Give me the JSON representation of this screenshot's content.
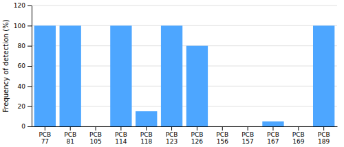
{
  "chart_data": {
    "type": "bar",
    "ylabel": "Frequency of detection (%)",
    "categories": [
      "PCB\n77",
      "PCB\n81",
      "PCB\n105",
      "PCB\n114",
      "PCB\n118",
      "PCB\n123",
      "PCB\n126",
      "PCB\n156",
      "PCB\n157",
      "PCB\n167",
      "PCB\n169",
      "PCB\n189"
    ],
    "values": [
      100,
      100,
      0,
      100,
      15,
      100,
      80,
      0,
      0,
      5,
      0,
      100
    ],
    "color": "#4DA6FF",
    "ylim": [
      0,
      120
    ],
    "yticks": [
      0,
      20,
      40,
      60,
      80,
      100,
      120
    ],
    "grid": true
  }
}
